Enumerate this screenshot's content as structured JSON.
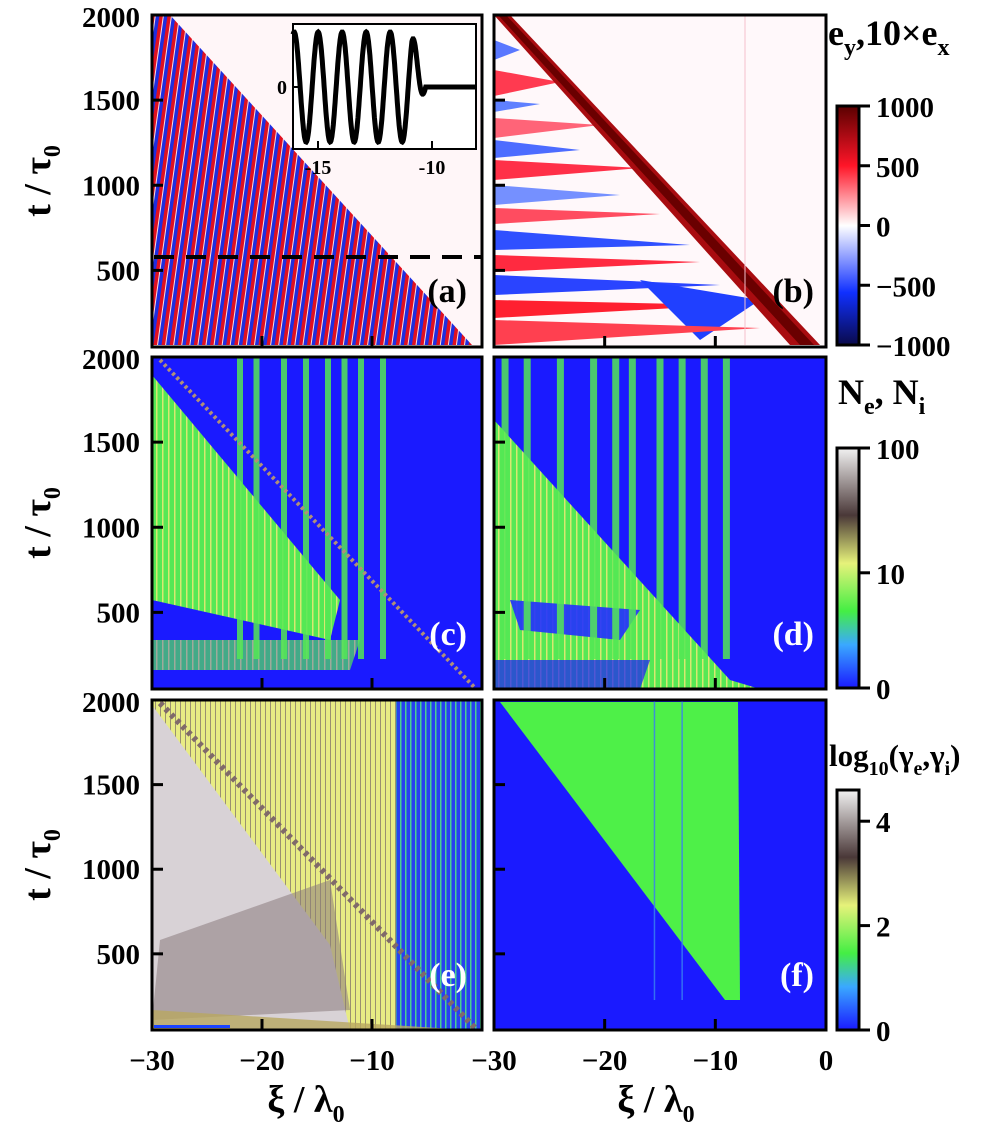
{
  "chart_data": {
    "type": "heatmap",
    "layout": "3 rows x 2 columns, shared axes",
    "xlabel": {
      "main": "ξ / λ",
      "sub": "0"
    },
    "ylabel": {
      "main": "t / τ",
      "sub": "0"
    },
    "xlim": [
      -30,
      0
    ],
    "ylim": [
      50,
      2000
    ],
    "xticks": [
      -30,
      -20,
      -10,
      0
    ],
    "xtick_labels": [
      "−30",
      "−20",
      "−10",
      "0"
    ],
    "yticks": [
      500,
      1000,
      1500,
      2000
    ],
    "ytick_labels": [
      "500",
      "1000",
      "1500",
      "2000"
    ],
    "dashed_line_t": 580,
    "panels": [
      {
        "label": "(a)",
        "row": 0,
        "col": 0,
        "quantity": "e_y",
        "front_xi_at_tmin": -3,
        "front_xi_at_tmax": -29
      },
      {
        "label": "(b)",
        "row": 0,
        "col": 1,
        "quantity": "10×e_x",
        "front_xi_at_tmin": -3,
        "front_xi_at_tmax": -29
      },
      {
        "label": "(c)",
        "row": 1,
        "col": 0,
        "quantity": "N_e",
        "plasma_edge_xi": -8
      },
      {
        "label": "(d)",
        "row": 1,
        "col": 1,
        "quantity": "N_i",
        "plasma_edge_xi": -8
      },
      {
        "label": "(e)",
        "row": 2,
        "col": 0,
        "quantity": "log10 γ_e",
        "plasma_edge_xi": -8
      },
      {
        "label": "(f)",
        "row": 2,
        "col": 1,
        "quantity": "log10 γ_i",
        "plasma_edge_xi": -8
      }
    ],
    "inset": {
      "panel": "(a)",
      "type": "line",
      "xlim": [
        -16,
        -8
      ],
      "xticks": [
        -15,
        -10
      ],
      "xtick_labels": [
        "-15",
        "-10"
      ],
      "ytick_labels": [
        "0"
      ],
      "description_values": {
        "oscillation_end_xi": -10.2,
        "periods": 5.5
      }
    },
    "colorbars": [
      {
        "title": {
          "a": "e",
          "a_sub": "y",
          "sep": ",10×e",
          "b_sub": "x"
        },
        "range": [
          -1000,
          1000
        ],
        "ticks": [
          1000,
          500,
          0,
          -500,
          -1000
        ],
        "tick_labels": [
          "1000",
          "500",
          "0",
          "−500",
          "−1000"
        ],
        "colors": [
          "#0a0a5a",
          "#1020ff",
          "#ffffff",
          "#ff1020",
          "#6a0000"
        ]
      },
      {
        "title": {
          "a": "N",
          "a_sub": "e",
          "sep": ", N",
          "b_sub": "i"
        },
        "scale": "log",
        "ticks": [
          100,
          10,
          0
        ],
        "tick_labels": [
          "100",
          "10",
          "0"
        ],
        "colors": [
          "#1a1aff",
          "#3aa0ff",
          "#44ee44",
          "#e8f070",
          "#5a4040",
          "#eeeeee"
        ]
      },
      {
        "title": {
          "a": "log",
          "a_sub": "10",
          "sep": "(γ",
          "b_sub": "e",
          "c": ",γ",
          "c_sub": "i",
          "end": ")"
        },
        "range": [
          0,
          4.6
        ],
        "ticks": [
          4,
          2,
          0
        ],
        "tick_labels": [
          "4",
          "2",
          "0"
        ],
        "colors": [
          "#1a1aff",
          "#3aa0ff",
          "#44ee44",
          "#e8f070",
          "#5a4040",
          "#eeeeee"
        ]
      }
    ]
  }
}
